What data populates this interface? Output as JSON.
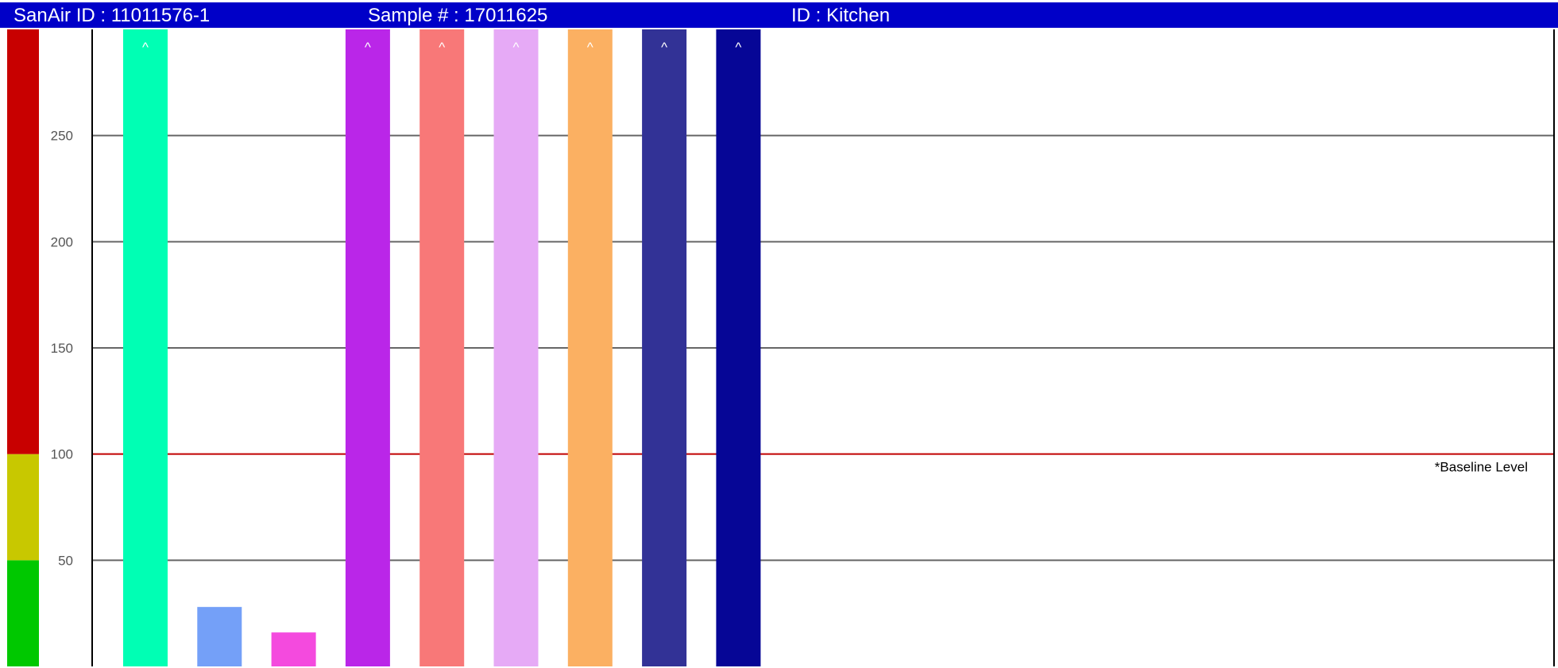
{
  "header": {
    "sanair_id": "SanAir ID : 11011576-1",
    "sample_number": "Sample # : 17011625",
    "location_id": "ID : Kitchen"
  },
  "chart_data": {
    "type": "bar",
    "ylim": [
      0,
      300
    ],
    "yticks": [
      50,
      100,
      150,
      200,
      250
    ],
    "grid": true,
    "baseline": {
      "value": 100,
      "label": "*Baseline Level",
      "color": "#c00000"
    },
    "risk_scale": [
      {
        "from": 0,
        "to": 50,
        "color": "#00c800"
      },
      {
        "from": 50,
        "to": 100,
        "color": "#c8c800"
      },
      {
        "from": 100,
        "to": 300,
        "color": "#c80000"
      }
    ],
    "bars": [
      {
        "value": 300,
        "overflow": true,
        "color": "#00ffb4"
      },
      {
        "value": 28,
        "overflow": false,
        "color": "#74a0f8"
      },
      {
        "value": 16,
        "overflow": false,
        "color": "#f44ade"
      },
      {
        "value": 300,
        "overflow": true,
        "color": "#ba26e8"
      },
      {
        "value": 300,
        "overflow": true,
        "color": "#f87878"
      },
      {
        "value": 300,
        "overflow": true,
        "color": "#e6aaf6"
      },
      {
        "value": 300,
        "overflow": true,
        "color": "#fbb062"
      },
      {
        "value": 300,
        "overflow": true,
        "color": "#323296"
      },
      {
        "value": 300,
        "overflow": true,
        "color": "#060696"
      }
    ],
    "overflow_marker": "^"
  }
}
